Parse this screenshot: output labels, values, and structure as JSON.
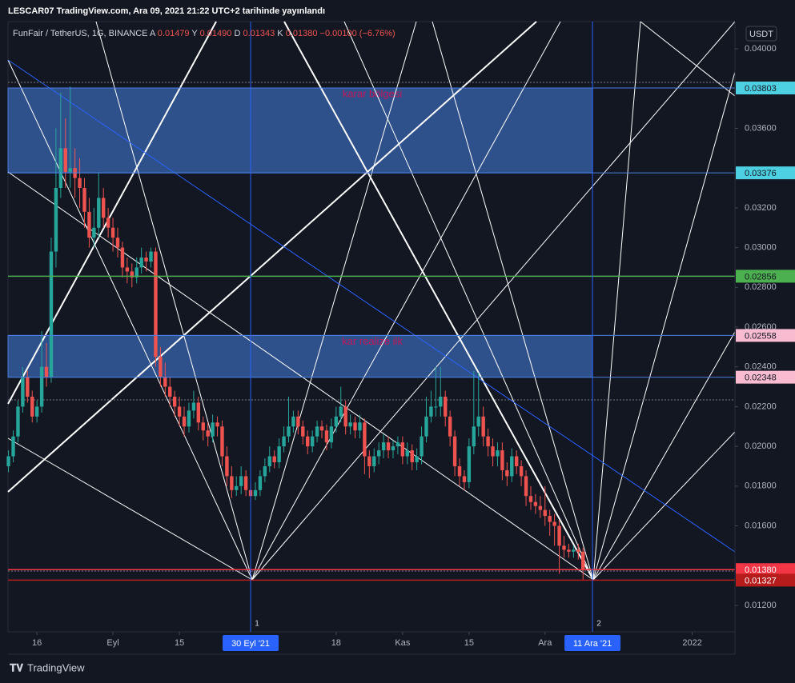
{
  "header": "LESCAR07 TradingView.com, Ara 09, 2021 21:22 UTC+2 tarihinde yayınlandı",
  "footer": "TradingView",
  "currency_button": "USDT",
  "chart_data": {
    "type": "candlestick",
    "symbol": "FunFair / TetherUS, 1G, BINANCE",
    "ohlc": [
      {
        "key": "A",
        "value": "0.01479"
      },
      {
        "key": "Y",
        "value": "0.01490"
      },
      {
        "key": "D",
        "value": "0.01343"
      },
      {
        "key": "K",
        "value": "0.01380"
      }
    ],
    "change": "−0.00100 (−6.76%)",
    "up_color": "#26a69a",
    "down_color": "#ef5350",
    "xlim": [
      8.9,
      162
    ],
    "ylim": [
      0.01067,
      0.04137
    ],
    "xticks": [
      {
        "value": 15,
        "label": "16"
      },
      {
        "value": 31,
        "label": "Eyl"
      },
      {
        "value": 45,
        "label": "15"
      },
      {
        "value": 78,
        "label": "18"
      },
      {
        "value": 92,
        "label": "Kas"
      },
      {
        "value": 106,
        "label": "15"
      },
      {
        "value": 122,
        "label": "Ara"
      },
      {
        "value": 153,
        "label": "2022"
      }
    ],
    "yticks": [
      {
        "value": 0.04,
        "label": "0.04000"
      },
      {
        "value": 0.036,
        "label": "0.03600"
      },
      {
        "value": 0.032,
        "label": "0.03200"
      },
      {
        "value": 0.03,
        "label": "0.03000"
      },
      {
        "value": 0.028,
        "label": "0.02800"
      },
      {
        "value": 0.026,
        "label": "0.02600"
      },
      {
        "value": 0.024,
        "label": "0.02400"
      },
      {
        "value": 0.022,
        "label": "0.02200"
      },
      {
        "value": 0.02,
        "label": "0.02000"
      },
      {
        "value": 0.018,
        "label": "0.01800"
      },
      {
        "value": 0.016,
        "label": "0.01600"
      },
      {
        "value": 0.012,
        "label": "0.01200"
      }
    ],
    "x": [
      9,
      10,
      11,
      12,
      13,
      14,
      15,
      16,
      17,
      18,
      19,
      20,
      21,
      22,
      23,
      24,
      25,
      26,
      27,
      28,
      29,
      30,
      31,
      32,
      33,
      34,
      35,
      36,
      37,
      38,
      39,
      40,
      41,
      42,
      43,
      44,
      45,
      46,
      47,
      48,
      49,
      50,
      51,
      52,
      53,
      54,
      55,
      56,
      57,
      58,
      59,
      60,
      61,
      62,
      63,
      64,
      65,
      66,
      67,
      68,
      69,
      70,
      71,
      72,
      73,
      74,
      75,
      76,
      77,
      78,
      79,
      80,
      81,
      82,
      83,
      84,
      85,
      86,
      87,
      88,
      89,
      90,
      91,
      92,
      93,
      94,
      95,
      96,
      97,
      98,
      99,
      100,
      101,
      102,
      103,
      104,
      105,
      106,
      107,
      108,
      109,
      110,
      111,
      112,
      113,
      114,
      115,
      116,
      117,
      118,
      119,
      120,
      121,
      122,
      123,
      124,
      125,
      126,
      127,
      128,
      129,
      130
    ],
    "open": [
      0.019,
      0.0195,
      0.0205,
      0.022,
      0.0235,
      0.0225,
      0.0215,
      0.022,
      0.024,
      0.0235,
      0.0298,
      0.033,
      0.035,
      0.0338,
      0.034,
      0.0335,
      0.033,
      0.0318,
      0.0305,
      0.031,
      0.0325,
      0.0315,
      0.031,
      0.0305,
      0.03,
      0.029,
      0.0288,
      0.0285,
      0.029,
      0.0295,
      0.0293,
      0.0298,
      0.0245,
      0.0235,
      0.023,
      0.0225,
      0.022,
      0.0215,
      0.021,
      0.0218,
      0.0222,
      0.0212,
      0.0208,
      0.0205,
      0.0212,
      0.021,
      0.0195,
      0.0185,
      0.0178,
      0.018,
      0.0185,
      0.0178,
      0.0175,
      0.0178,
      0.0185,
      0.019,
      0.0195,
      0.0192,
      0.02,
      0.0205,
      0.021,
      0.0215,
      0.021,
      0.0205,
      0.02,
      0.0205,
      0.021,
      0.0208,
      0.0202,
      0.021,
      0.0215,
      0.022,
      0.021,
      0.0212,
      0.0208,
      0.0212,
      0.0195,
      0.019,
      0.0195,
      0.0198,
      0.0202,
      0.0198,
      0.02,
      0.0202,
      0.0195,
      0.0198,
      0.0192,
      0.0195,
      0.0205,
      0.0215,
      0.022,
      0.022,
      0.0225,
      0.0215,
      0.0205,
      0.019,
      0.0185,
      0.0182,
      0.02,
      0.021,
      0.0215,
      0.0205,
      0.02,
      0.0195,
      0.0198,
      0.0188,
      0.0185,
      0.0195,
      0.019,
      0.0185,
      0.0175,
      0.0172,
      0.017,
      0.0168,
      0.0165,
      0.0162,
      0.016,
      0.015,
      0.0148,
      0.0147,
      0.0148,
      0.0147
    ],
    "high": [
      0.0198,
      0.0208,
      0.0223,
      0.024,
      0.0238,
      0.0228,
      0.0223,
      0.0258,
      0.0252,
      0.0305,
      0.036,
      0.0378,
      0.0365,
      0.0381,
      0.035,
      0.0345,
      0.0335,
      0.0325,
      0.032,
      0.0338,
      0.033,
      0.032,
      0.0315,
      0.031,
      0.0303,
      0.0295,
      0.0292,
      0.0295,
      0.03,
      0.0298,
      0.03,
      0.03,
      0.025,
      0.0242,
      0.0235,
      0.0228,
      0.0225,
      0.022,
      0.0222,
      0.0228,
      0.0225,
      0.0215,
      0.0212,
      0.0216,
      0.0215,
      0.0213,
      0.02,
      0.019,
      0.0185,
      0.019,
      0.0188,
      0.0181,
      0.0182,
      0.0188,
      0.0194,
      0.02,
      0.0198,
      0.0204,
      0.021,
      0.0225,
      0.0218,
      0.0218,
      0.0213,
      0.0208,
      0.0208,
      0.0213,
      0.0213,
      0.0211,
      0.0214,
      0.022,
      0.023,
      0.0223,
      0.0216,
      0.0215,
      0.0216,
      0.0214,
      0.0198,
      0.0199,
      0.0202,
      0.0206,
      0.0205,
      0.0203,
      0.0205,
      0.0205,
      0.0202,
      0.0201,
      0.0199,
      0.021,
      0.0225,
      0.0228,
      0.024,
      0.024,
      0.0228,
      0.0218,
      0.0208,
      0.0194,
      0.0188,
      0.0204,
      0.0238,
      0.0237,
      0.022,
      0.0209,
      0.0204,
      0.0202,
      0.0202,
      0.0192,
      0.0199,
      0.0198,
      0.0193,
      0.0188,
      0.018,
      0.0176,
      0.0175,
      0.018,
      0.0168,
      0.0166,
      0.0163,
      0.0155,
      0.0151,
      0.015,
      0.0151,
      0.0149
    ],
    "low": [
      0.0187,
      0.0192,
      0.0202,
      0.0217,
      0.0222,
      0.0212,
      0.0212,
      0.0217,
      0.023,
      0.0232,
      0.029,
      0.0325,
      0.033,
      0.033,
      0.0325,
      0.032,
      0.031,
      0.03,
      0.03,
      0.0305,
      0.031,
      0.0305,
      0.0298,
      0.0295,
      0.0285,
      0.0282,
      0.028,
      0.0282,
      0.0287,
      0.0288,
      0.029,
      0.024,
      0.023,
      0.0225,
      0.022,
      0.0215,
      0.021,
      0.0205,
      0.0207,
      0.0214,
      0.0208,
      0.0203,
      0.02,
      0.0202,
      0.0205,
      0.019,
      0.018,
      0.0174,
      0.0175,
      0.0176,
      0.0175,
      0.0172,
      0.0173,
      0.0175,
      0.0182,
      0.0187,
      0.0189,
      0.0189,
      0.0197,
      0.0202,
      0.0207,
      0.0206,
      0.0201,
      0.0196,
      0.0197,
      0.0202,
      0.0204,
      0.0198,
      0.0199,
      0.0207,
      0.0212,
      0.0206,
      0.0206,
      0.0204,
      0.0204,
      0.0186,
      0.0184,
      0.0187,
      0.0191,
      0.0194,
      0.0194,
      0.0194,
      0.0196,
      0.0191,
      0.0191,
      0.0188,
      0.0188,
      0.0191,
      0.0202,
      0.0212,
      0.0215,
      0.0215,
      0.021,
      0.02,
      0.0185,
      0.018,
      0.0178,
      0.0179,
      0.0196,
      0.0205,
      0.02,
      0.0195,
      0.019,
      0.019,
      0.0183,
      0.018,
      0.0182,
      0.0186,
      0.018,
      0.017,
      0.0168,
      0.0166,
      0.0164,
      0.016,
      0.0155,
      0.015,
      0.0136,
      0.0144,
      0.0144,
      0.0144,
      0.0143,
      0.0133
    ],
    "close": [
      0.0195,
      0.0205,
      0.022,
      0.0235,
      0.0225,
      0.0215,
      0.022,
      0.024,
      0.0235,
      0.0298,
      0.033,
      0.035,
      0.0338,
      0.034,
      0.0335,
      0.033,
      0.0318,
      0.0305,
      0.031,
      0.0325,
      0.0315,
      0.031,
      0.0305,
      0.03,
      0.029,
      0.0288,
      0.0285,
      0.029,
      0.0295,
      0.0293,
      0.0298,
      0.0245,
      0.0235,
      0.023,
      0.0225,
      0.022,
      0.0215,
      0.021,
      0.0218,
      0.0222,
      0.0212,
      0.0208,
      0.0205,
      0.0212,
      0.021,
      0.0195,
      0.0185,
      0.0178,
      0.018,
      0.0185,
      0.0178,
      0.0175,
      0.0178,
      0.0185,
      0.019,
      0.0195,
      0.0192,
      0.02,
      0.0205,
      0.021,
      0.0215,
      0.021,
      0.0205,
      0.02,
      0.0205,
      0.021,
      0.0208,
      0.0202,
      0.021,
      0.0215,
      0.022,
      0.021,
      0.0212,
      0.0208,
      0.0212,
      0.0195,
      0.019,
      0.0195,
      0.0198,
      0.0202,
      0.0198,
      0.02,
      0.0202,
      0.0195,
      0.0198,
      0.0192,
      0.0195,
      0.0205,
      0.0215,
      0.022,
      0.022,
      0.0225,
      0.0215,
      0.0205,
      0.019,
      0.0185,
      0.0182,
      0.02,
      0.021,
      0.0215,
      0.0205,
      0.02,
      0.0195,
      0.0198,
      0.0188,
      0.0185,
      0.0195,
      0.019,
      0.0185,
      0.0175,
      0.0172,
      0.017,
      0.0168,
      0.0165,
      0.0162,
      0.016,
      0.015,
      0.0148,
      0.0147,
      0.0148,
      0.0147,
      0.0138
    ],
    "zones": [
      {
        "label": "karar bölgesi",
        "high": 0.03803,
        "low": 0.03376,
        "color": "#4dd0e1"
      },
      {
        "label": "kar realize ilk",
        "high": 0.02558,
        "low": 0.02348,
        "color": "#f8bbd0"
      }
    ],
    "levels": [
      {
        "value": 0.02856,
        "color": "#4caf50"
      },
      {
        "value": 0.0138,
        "label": "0.01380",
        "color": "#f23645"
      },
      {
        "value": 0.01327,
        "label": "0.01327",
        "color": "#b71c1c"
      }
    ],
    "date_markers": [
      {
        "x": 60,
        "label": "30 Eyl '21",
        "marker": "1"
      },
      {
        "x": 132,
        "label": "11 Ara '21",
        "marker": "2"
      }
    ]
  }
}
